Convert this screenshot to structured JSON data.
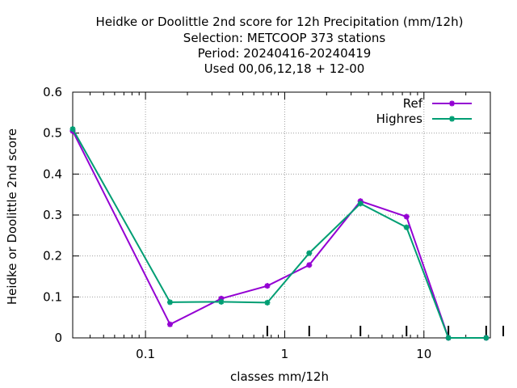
{
  "chart_data": {
    "type": "line",
    "title": [
      "Heidke or Doolittle 2nd score  for 12h Precipitation (mm/12h)",
      "Selection: METCOOP    373 stations",
      "Period: 20240416-20240419",
      "Used  00,06,12,18 + 12-00"
    ],
    "xlabel": "classes mm/12h",
    "ylabel": "Heidke or Doolittle 2nd score",
    "x_scale": "log",
    "xlim": [
      0.03,
      30
    ],
    "ylim": [
      0,
      0.6
    ],
    "x_ticks": [
      {
        "value": 0.1,
        "label": "0.1"
      },
      {
        "value": 1,
        "label": "1"
      },
      {
        "value": 10,
        "label": "10"
      }
    ],
    "y_ticks": [
      {
        "value": 0,
        "label": "0"
      },
      {
        "value": 0.1,
        "label": "0.1"
      },
      {
        "value": 0.2,
        "label": "0.2"
      },
      {
        "value": 0.3,
        "label": "0.3"
      },
      {
        "value": 0.4,
        "label": "0.4"
      },
      {
        "value": 0.5,
        "label": "0.5"
      },
      {
        "value": 0.6,
        "label": "0.6"
      }
    ],
    "grid": true,
    "legend_position": "top-right",
    "x": [
      0.03,
      0.15,
      0.35,
      0.75,
      1.5,
      3.5,
      7.5,
      15,
      28
    ],
    "series": [
      {
        "name": "Ref",
        "color": "#9400d3",
        "values": [
          0.505,
          0.033,
          0.096,
          0.127,
          0.178,
          0.334,
          0.296,
          0.0,
          0.0
        ]
      },
      {
        "name": "Highres",
        "color": "#009e73",
        "values": [
          0.51,
          0.087,
          0.088,
          0.086,
          0.207,
          0.328,
          0.27,
          0.0,
          0.0
        ]
      }
    ],
    "extra_bar_ticks": [
      0.75,
      1.5,
      3.5,
      7.5,
      15,
      28
    ]
  }
}
